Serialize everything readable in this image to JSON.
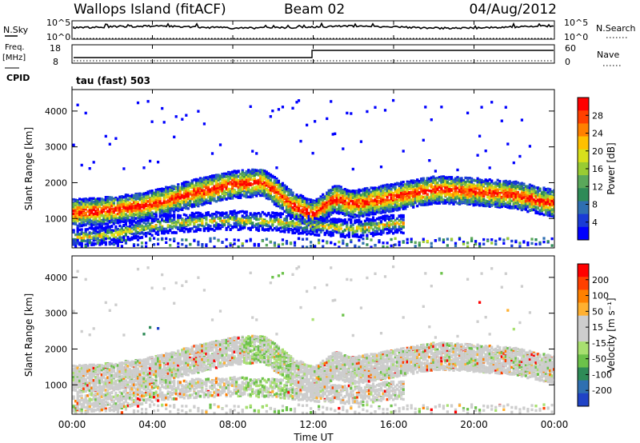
{
  "header": {
    "station": "Wallops Island (fitACF)",
    "beam": "Beam 02",
    "date": "04/Aug/2012"
  },
  "info_panels": {
    "nsky_label": "N.Sky",
    "nsearch_label": "N.Search",
    "noise_ticks": [
      "10^5",
      "10^0"
    ],
    "freq_label_1": "Freq.",
    "freq_label_2": "[MHz]",
    "freq_ticks": [
      "18",
      "8"
    ],
    "nave_label": "Nave",
    "nave_ticks": [
      "60",
      "0"
    ],
    "cpid_label": "CPID",
    "cpid_text": "tau (fast) 503"
  },
  "colors": {
    "power": [
      "#0000ff",
      "#1a3bd6",
      "#2f6fb1",
      "#2e8b57",
      "#5aa85a",
      "#99cc33",
      "#d8e01c",
      "#ffc000",
      "#ff8000",
      "#ff4000",
      "#ff0000"
    ],
    "velocity": [
      "#2043c6",
      "#2f6fb1",
      "#2e8b57",
      "#6cc24a",
      "#a8e070",
      "#cdcdcd",
      "#cdcdcd",
      "#ffb030",
      "#ff8000",
      "#ff4000",
      "#ff0000"
    ]
  },
  "chart_data": [
    {
      "type": "heatmap",
      "panel": "power",
      "xlabel": "",
      "ylabel": "Slant Range [km]",
      "xlim": [
        0,
        24
      ],
      "ylim": [
        180,
        4600
      ],
      "xticks": [
        "00:00",
        "04:00",
        "08:00",
        "12:00",
        "16:00",
        "20:00",
        "00:00"
      ],
      "yticks": [
        1000,
        2000,
        3000,
        4000
      ],
      "colorbar": {
        "label": "Power [dB]",
        "ticks": [
          4,
          8,
          12,
          16,
          20,
          24,
          28
        ],
        "range": [
          0,
          32
        ]
      },
      "series": [
        {
          "band": "main_echo",
          "x": [
            0,
            2,
            4,
            6,
            8,
            9.5,
            11,
            12,
            13,
            14,
            16,
            18,
            20,
            22,
            24
          ],
          "y": [
            1150,
            1230,
            1400,
            1700,
            1950,
            2000,
            1350,
            1100,
            1550,
            1400,
            1600,
            1800,
            1750,
            1650,
            1400
          ]
        },
        {
          "band": "lower_echo",
          "x": [
            0,
            2,
            4,
            6,
            8,
            10,
            12,
            14,
            16
          ],
          "y": [
            450,
            550,
            800,
            900,
            950,
            900,
            800,
            700,
            850
          ]
        }
      ]
    },
    {
      "type": "heatmap",
      "panel": "velocity",
      "xlabel": "Time UT",
      "ylabel": "Slant Range [km]",
      "xlim": [
        0,
        24
      ],
      "ylim": [
        180,
        4600
      ],
      "xticks": [
        "00:00",
        "04:00",
        "08:00",
        "12:00",
        "16:00",
        "20:00",
        "00:00"
      ],
      "yticks": [
        1000,
        2000,
        3000,
        4000
      ],
      "colorbar": {
        "label": "Velocity [m s⁻¹]",
        "ticks": [
          200,
          100,
          50,
          15,
          -15,
          -50,
          -100,
          -200
        ]
      }
    }
  ]
}
